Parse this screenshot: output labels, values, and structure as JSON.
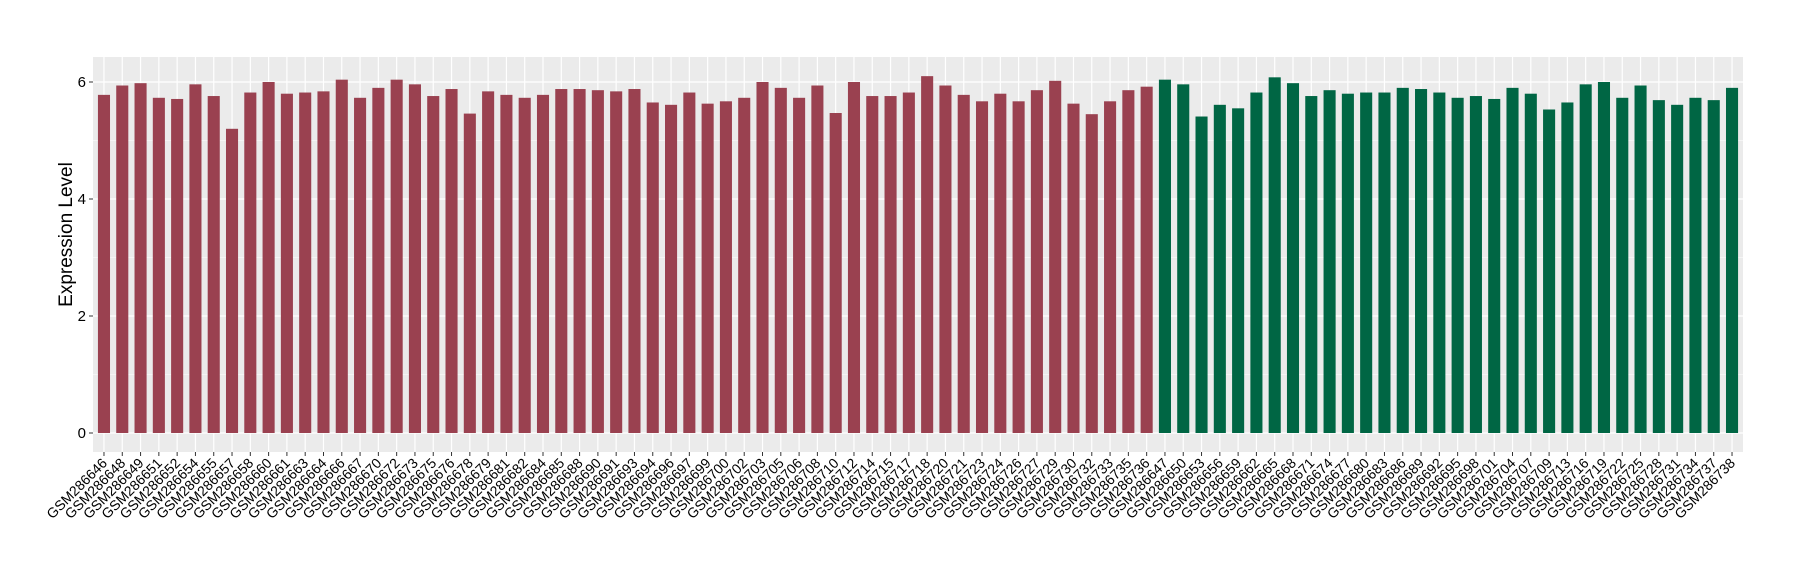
{
  "chart_data": {
    "type": "bar",
    "title": "",
    "xlabel": "",
    "ylabel": "Expression Level",
    "ylim": [
      0,
      6.3
    ],
    "yticks": [
      0,
      2,
      4,
      6
    ],
    "grid": true,
    "legend": "none",
    "colors": {
      "group1": "#9A4150",
      "group2": "#006644",
      "panel": "#EBEBEB",
      "grid": "#FFFFFF"
    },
    "categories": [
      "GSM286646",
      "GSM286648",
      "GSM286649",
      "GSM286651",
      "GSM286652",
      "GSM286654",
      "GSM286655",
      "GSM286657",
      "GSM286658",
      "GSM286660",
      "GSM286661",
      "GSM286663",
      "GSM286664",
      "GSM286666",
      "GSM286667",
      "GSM286670",
      "GSM286672",
      "GSM286673",
      "GSM286675",
      "GSM286676",
      "GSM286678",
      "GSM286679",
      "GSM286681",
      "GSM286682",
      "GSM286684",
      "GSM286685",
      "GSM286688",
      "GSM286690",
      "GSM286691",
      "GSM286693",
      "GSM286694",
      "GSM286696",
      "GSM286697",
      "GSM286699",
      "GSM286700",
      "GSM286702",
      "GSM286703",
      "GSM286705",
      "GSM286706",
      "GSM286708",
      "GSM286710",
      "GSM286712",
      "GSM286714",
      "GSM286715",
      "GSM286717",
      "GSM286718",
      "GSM286720",
      "GSM286721",
      "GSM286723",
      "GSM286724",
      "GSM286726",
      "GSM286727",
      "GSM286729",
      "GSM286730",
      "GSM286732",
      "GSM286733",
      "GSM286735",
      "GSM286736",
      "GSM286647",
      "GSM286650",
      "GSM286653",
      "GSM286656",
      "GSM286659",
      "GSM286662",
      "GSM286665",
      "GSM286668",
      "GSM286671",
      "GSM286674",
      "GSM286677",
      "GSM286680",
      "GSM286683",
      "GSM286686",
      "GSM286689",
      "GSM286692",
      "GSM286695",
      "GSM286698",
      "GSM286701",
      "GSM286704",
      "GSM286707",
      "GSM286709",
      "GSM286713",
      "GSM286716",
      "GSM286719",
      "GSM286722",
      "GSM286725",
      "GSM286728",
      "GSM286731",
      "GSM286734",
      "GSM286737",
      "GSM286738"
    ],
    "values": [
      5.78,
      5.94,
      5.98,
      5.73,
      5.71,
      5.96,
      5.76,
      5.2,
      5.82,
      6.0,
      5.8,
      5.82,
      5.84,
      6.04,
      5.73,
      5.9,
      6.04,
      5.96,
      5.76,
      5.88,
      5.46,
      5.84,
      5.78,
      5.73,
      5.78,
      5.88,
      5.88,
      5.86,
      5.84,
      5.88,
      5.65,
      5.61,
      5.82,
      5.63,
      5.67,
      5.73,
      6.0,
      5.9,
      5.73,
      5.94,
      5.47,
      6.0,
      5.76,
      5.76,
      5.82,
      6.1,
      5.94,
      5.78,
      5.67,
      5.8,
      5.67,
      5.86,
      6.02,
      5.63,
      5.45,
      5.67,
      5.86,
      5.92,
      6.04,
      5.96,
      5.41,
      5.61,
      5.55,
      5.82,
      6.08,
      5.98,
      5.76,
      5.86,
      5.8,
      5.82,
      5.82,
      5.9,
      5.88,
      5.82,
      5.73,
      5.76,
      5.71,
      5.9,
      5.8,
      5.53,
      5.65,
      5.96,
      6.0,
      5.73,
      5.94,
      5.69,
      5.61,
      5.73,
      5.69,
      5.9
    ],
    "group": [
      1,
      1,
      1,
      1,
      1,
      1,
      1,
      1,
      1,
      1,
      1,
      1,
      1,
      1,
      1,
      1,
      1,
      1,
      1,
      1,
      1,
      1,
      1,
      1,
      1,
      1,
      1,
      1,
      1,
      1,
      1,
      1,
      1,
      1,
      1,
      1,
      1,
      1,
      1,
      1,
      1,
      1,
      1,
      1,
      1,
      1,
      1,
      1,
      1,
      1,
      1,
      1,
      1,
      1,
      1,
      1,
      1,
      1,
      2,
      2,
      2,
      2,
      2,
      2,
      2,
      2,
      2,
      2,
      2,
      2,
      2,
      2,
      2,
      2,
      2,
      2,
      2,
      2,
      2,
      2,
      2,
      2,
      2,
      2,
      2,
      2,
      2,
      2,
      2,
      2
    ]
  }
}
